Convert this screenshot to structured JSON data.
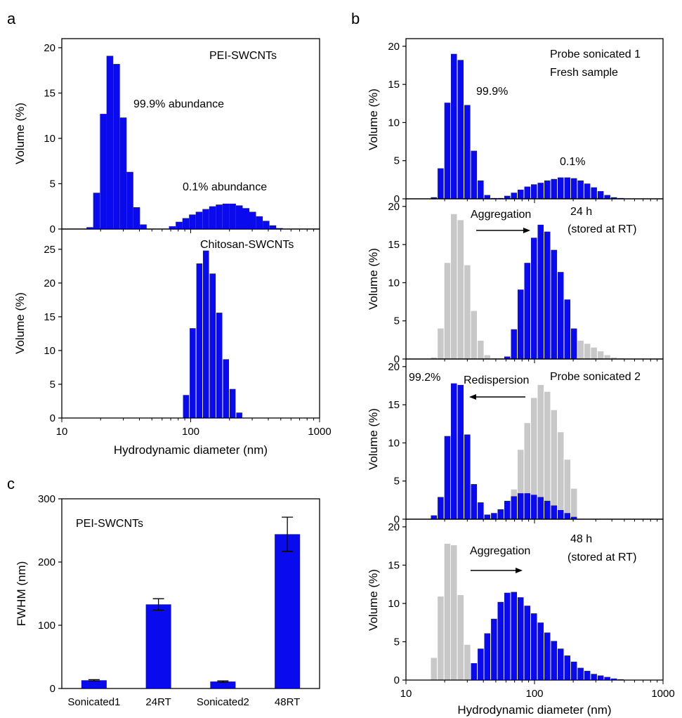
{
  "colors": {
    "primary": "#0a0aee",
    "reference": "#c8c8c8",
    "axis": "#000000"
  },
  "panel_labels": {
    "a": "a",
    "b": "b",
    "c": "c"
  },
  "chart_data": [
    {
      "id": "a-top",
      "type": "bar",
      "xscale": "log",
      "xlim": [
        10,
        1000
      ],
      "ylim": [
        0,
        21
      ],
      "ylabel": "Volume (%)",
      "xlabel": "",
      "yticks": [
        0,
        5,
        10,
        15,
        20
      ],
      "annotations": [
        "PEI-SWCNTs",
        "99.9% abundance",
        "0.1% abundance"
      ],
      "series": [
        {
          "color": "primary",
          "x": [
            16.5,
            18.6,
            21,
            23.6,
            26.6,
            30,
            33.8,
            38.1,
            42.9,
            48.4,
            72,
            81.2,
            91.5,
            103.1,
            116.2,
            131,
            147.7,
            166.4,
            187.6,
            211.4,
            238.3,
            268.6,
            302.8,
            341.3,
            384.7,
            433.6,
            488.7
          ],
          "values": [
            0.2,
            4.0,
            12.7,
            19.1,
            18.2,
            12.3,
            6.3,
            2.4,
            0.5,
            0,
            0.3,
            0.8,
            1.2,
            1.6,
            1.9,
            2.2,
            2.5,
            2.7,
            2.8,
            2.8,
            2.6,
            2.3,
            1.9,
            1.4,
            0.9,
            0.4,
            0.1
          ]
        }
      ]
    },
    {
      "id": "a-bottom",
      "type": "bar",
      "xscale": "log",
      "xlim": [
        10,
        1000
      ],
      "ylim": [
        0,
        28
      ],
      "ylabel": "Volume (%)",
      "xlabel": "Hydrodynamic diameter (nm)",
      "yticks": [
        0,
        5,
        10,
        15,
        20,
        25
      ],
      "xticks": [
        "10",
        "100",
        "1000"
      ],
      "annotations": [
        "Chitosan-SWCNTs"
      ],
      "series": [
        {
          "color": "primary",
          "x": [
            92,
            103.6,
            116.7,
            131.4,
            148,
            166.7,
            187.8,
            211.5,
            238.2
          ],
          "values": [
            3.4,
            13.3,
            22.9,
            24.8,
            21.4,
            15.6,
            8.7,
            4.3,
            0.8
          ]
        }
      ]
    },
    {
      "id": "b1",
      "type": "bar",
      "xscale": "log",
      "xlim": [
        10,
        1000
      ],
      "ylim": [
        0,
        21
      ],
      "ylabel": "Volume (%)",
      "yticks": [
        0,
        5,
        10,
        15,
        20
      ],
      "annotations": [
        "Probe sonicated 1",
        "Fresh sample",
        "99.9%",
        "0.1%"
      ],
      "series": [
        {
          "color": "primary",
          "x": [
            16.5,
            18.6,
            21,
            23.6,
            26.6,
            30,
            33.8,
            38.1,
            42.9,
            48.4,
            54.5,
            61.4,
            69.2,
            78,
            87.9,
            99.1,
            111.6,
            125.8,
            141.7,
            159.7,
            180,
            202.8,
            228.5,
            257.5,
            290.2,
            327,
            368.5,
            415.2,
            467.9
          ],
          "values": [
            0.2,
            4.0,
            12.6,
            19.0,
            18.2,
            12.3,
            6.3,
            2.4,
            0.5,
            0.1,
            0.1,
            0.4,
            0.8,
            1.2,
            1.6,
            1.9,
            2.1,
            2.4,
            2.6,
            2.8,
            2.8,
            2.7,
            2.4,
            2.0,
            1.5,
            1.0,
            0.5,
            0.2,
            0.1
          ]
        }
      ]
    },
    {
      "id": "b2",
      "type": "bar",
      "xscale": "log",
      "xlim": [
        10,
        1000
      ],
      "ylim": [
        0,
        21
      ],
      "ylabel": "Volume (%)",
      "yticks": [
        0,
        5,
        10,
        15,
        20
      ],
      "annotations": [
        "Aggregation",
        "24 h",
        "(stored at RT)"
      ],
      "series": [
        {
          "color": "reference",
          "x": [
            16.5,
            18.6,
            21,
            23.6,
            26.6,
            30,
            33.8,
            38.1,
            42.9,
            48.4,
            54.5,
            61.4,
            69.2,
            78,
            87.9,
            99.1,
            111.6,
            125.8,
            141.7,
            159.7,
            180,
            202.8,
            228.5,
            257.5,
            290.2,
            327,
            368.5,
            415.2,
            467.9
          ],
          "values": [
            0.2,
            4.0,
            12.6,
            19.0,
            18.2,
            12.3,
            6.3,
            2.4,
            0.5,
            0.1,
            0.1,
            0.4,
            0.8,
            1.2,
            1.6,
            1.9,
            2.1,
            2.4,
            2.6,
            2.8,
            2.8,
            2.7,
            2.4,
            2.0,
            1.5,
            1.0,
            0.5,
            0.2,
            0.1
          ]
        },
        {
          "color": "primary",
          "x": [
            61.4,
            69.2,
            78,
            87.9,
            99.1,
            111.6,
            125.8,
            141.7,
            159.7,
            180,
            202.8
          ],
          "values": [
            0.3,
            3.9,
            9.1,
            12.6,
            15.9,
            17.6,
            16.7,
            14.3,
            11.4,
            7.8,
            4.0
          ]
        }
      ]
    },
    {
      "id": "b3",
      "type": "bar",
      "xscale": "log",
      "xlim": [
        10,
        1000
      ],
      "ylim": [
        0,
        21
      ],
      "ylabel": "Volume (%)",
      "yticks": [
        0,
        5,
        10,
        15,
        20
      ],
      "annotations": [
        "99.2%",
        "Redispersion",
        "Probe sonicated 2"
      ],
      "series": [
        {
          "color": "reference",
          "x": [
            61.4,
            69.2,
            78,
            87.9,
            99.1,
            111.6,
            125.8,
            141.7,
            159.7,
            180,
            202.8
          ],
          "values": [
            0.3,
            3.9,
            9.1,
            12.6,
            15.9,
            17.6,
            16.7,
            14.3,
            11.4,
            7.8,
            4.0
          ]
        },
        {
          "color": "primary",
          "x": [
            16.5,
            18.6,
            21,
            23.6,
            26.6,
            30,
            33.8,
            38.1,
            42.9,
            48.4,
            54.5,
            61.4,
            69.2,
            78,
            87.9,
            99.1,
            111.6,
            125.8,
            141.7,
            159.7,
            180,
            202.8
          ],
          "values": [
            0.5,
            2.9,
            10.9,
            17.8,
            17.6,
            11.1,
            4.6,
            2.2,
            0.6,
            0.8,
            1.3,
            2.4,
            3.0,
            3.4,
            3.4,
            3.2,
            2.9,
            2.4,
            1.8,
            1.2,
            0.8,
            0.3
          ]
        }
      ]
    },
    {
      "id": "b4",
      "type": "bar",
      "xscale": "log",
      "xlim": [
        10,
        1000
      ],
      "ylim": [
        0,
        21
      ],
      "ylabel": "Volume (%)",
      "xlabel": "Hydrodynamic diameter (nm)",
      "yticks": [
        0,
        5,
        10,
        15,
        20
      ],
      "xticks": [
        "10",
        "100",
        "1000"
      ],
      "annotations": [
        "Aggregation",
        "48 h",
        "(stored at RT)"
      ],
      "series": [
        {
          "color": "reference",
          "x": [
            16.5,
            18.6,
            21,
            23.6,
            26.6,
            30,
            33.8
          ],
          "values": [
            2.9,
            10.9,
            17.8,
            17.6,
            11.1,
            4.6,
            0.2
          ]
        },
        {
          "color": "primary",
          "x": [
            33.8,
            38.1,
            42.9,
            48.4,
            54.5,
            61.4,
            69.2,
            78,
            87.9,
            99.1,
            111.6,
            125.8,
            141.7,
            159.7,
            180,
            202.8,
            228.5,
            257.5,
            290.2,
            327,
            368.5,
            415.2,
            467.9
          ],
          "values": [
            2.2,
            4.1,
            6.1,
            8.0,
            10.2,
            11.4,
            11.5,
            10.8,
            9.7,
            8.7,
            7.5,
            6.2,
            5.1,
            4.1,
            3.2,
            2.4,
            1.6,
            1.2,
            0.8,
            0.6,
            0.4,
            0.2,
            0.1
          ]
        }
      ]
    },
    {
      "id": "c",
      "type": "bar",
      "ylim": [
        0,
        300
      ],
      "ylabel": "FWHM (nm)",
      "yticks": [
        0,
        100,
        200,
        300
      ],
      "annotations": [
        "PEI-SWCNTs"
      ],
      "categories": [
        "Sonicated1",
        "24RT",
        "Sonicated2",
        "48RT"
      ],
      "values": [
        13,
        133,
        11,
        244
      ],
      "errors": [
        1,
        9,
        1,
        27
      ]
    }
  ]
}
